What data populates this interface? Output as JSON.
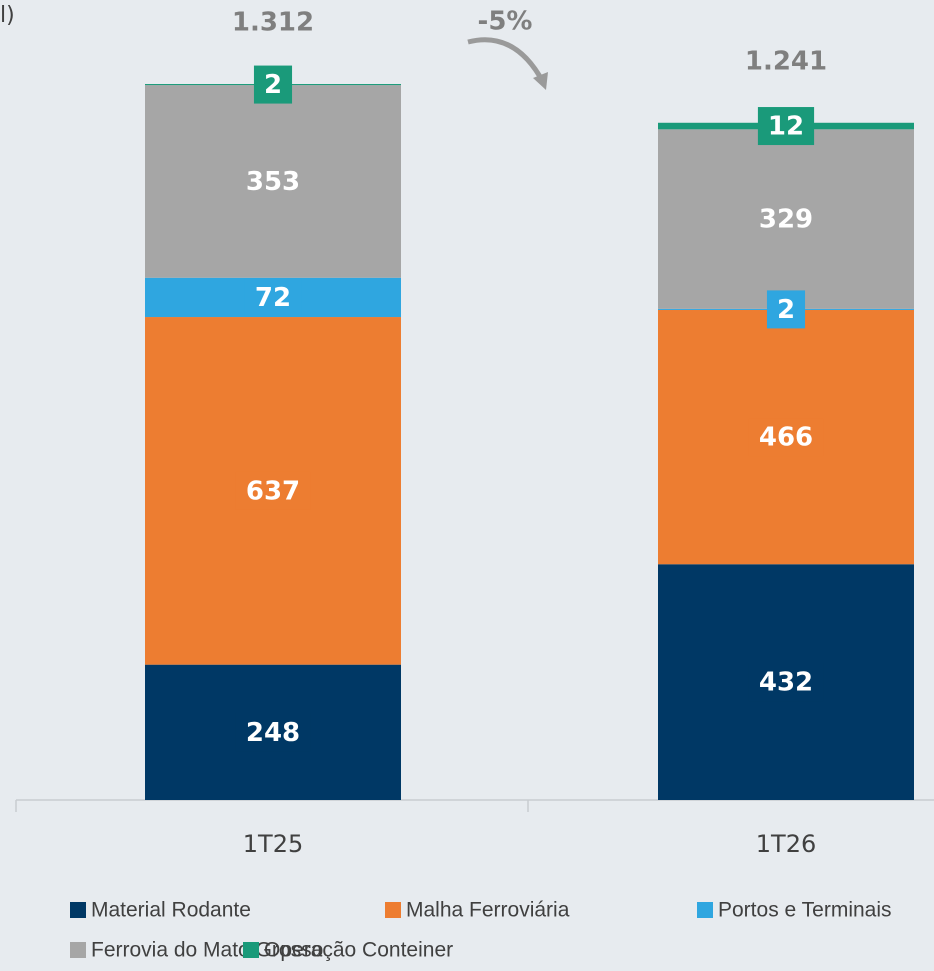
{
  "chart_data": {
    "type": "stacked_bar",
    "title": "l)",
    "annotation": "-5%",
    "categories": [
      "1T25",
      "1T26"
    ],
    "series": [
      {
        "name": "Material Rodante",
        "color": "#003865",
        "values": [
          248,
          432
        ]
      },
      {
        "name": "Malha Ferroviária",
        "color": "#ED7D31",
        "values": [
          637,
          466
        ]
      },
      {
        "name": "Portos e Terminais",
        "color": "#2FA6E0",
        "values": [
          72,
          2
        ]
      },
      {
        "name": "Ferrovia do Mato Grosso",
        "color": "#A6A6A6",
        "values": [
          353,
          329
        ]
      },
      {
        "name": "Operação Conteiner",
        "color": "#1A9A7A",
        "values": [
          2,
          12
        ]
      }
    ],
    "totals": {
      "values": [
        1312,
        1241
      ],
      "value_labels": [
        "1.312",
        "1.241"
      ]
    },
    "ylim": [
      0,
      1400
    ],
    "legend": "bottom"
  }
}
